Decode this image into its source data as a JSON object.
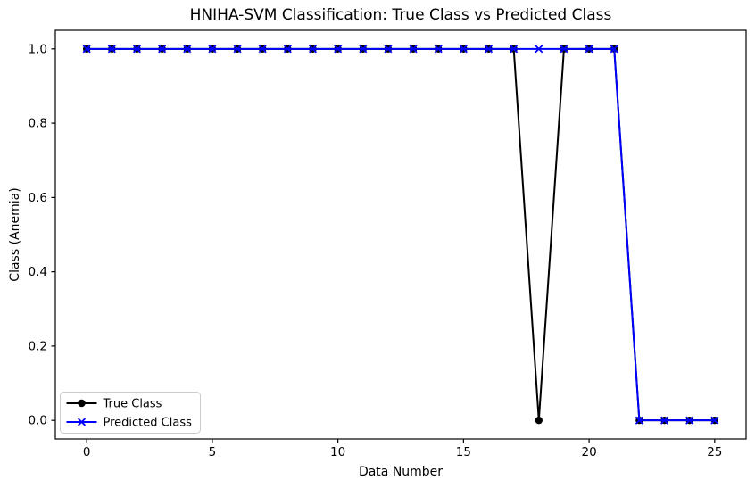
{
  "figure": {
    "background": "#ffffff",
    "frame_color": "#000000"
  },
  "chart_data": {
    "type": "line",
    "title": "HNIHA-SVM Classification: True Class vs Predicted Class",
    "xlabel": "Data Number",
    "ylabel": "Class (Anemia)",
    "x": [
      0,
      1,
      2,
      3,
      4,
      5,
      6,
      7,
      8,
      9,
      10,
      11,
      12,
      13,
      14,
      15,
      16,
      17,
      18,
      19,
      20,
      21,
      22,
      23,
      24,
      25
    ],
    "series": [
      {
        "name": "True Class",
        "color": "#000000",
        "marker": "circle",
        "values": [
          1,
          1,
          1,
          1,
          1,
          1,
          1,
          1,
          1,
          1,
          1,
          1,
          1,
          1,
          1,
          1,
          1,
          1,
          0,
          1,
          1,
          1,
          0,
          0,
          0,
          0
        ]
      },
      {
        "name": "Predicted Class",
        "color": "#0000ff",
        "marker": "x",
        "values": [
          1,
          1,
          1,
          1,
          1,
          1,
          1,
          1,
          1,
          1,
          1,
          1,
          1,
          1,
          1,
          1,
          1,
          1,
          1,
          1,
          1,
          1,
          0,
          0,
          0,
          0
        ]
      }
    ],
    "xticks": [
      0,
      5,
      10,
      15,
      20,
      25
    ],
    "yticks": {
      "values": [
        0,
        0.2,
        0.4,
        0.6,
        0.8,
        1.0
      ],
      "labels": [
        "0.0",
        "0.2",
        "0.4",
        "0.6",
        "0.8",
        "1.0"
      ]
    },
    "xlim": [
      -1.25,
      26.25
    ],
    "ylim": [
      -0.05,
      1.05
    ],
    "grid": false,
    "legend": {
      "position": "lower left",
      "entries": [
        "True Class",
        "Predicted Class"
      ]
    }
  }
}
